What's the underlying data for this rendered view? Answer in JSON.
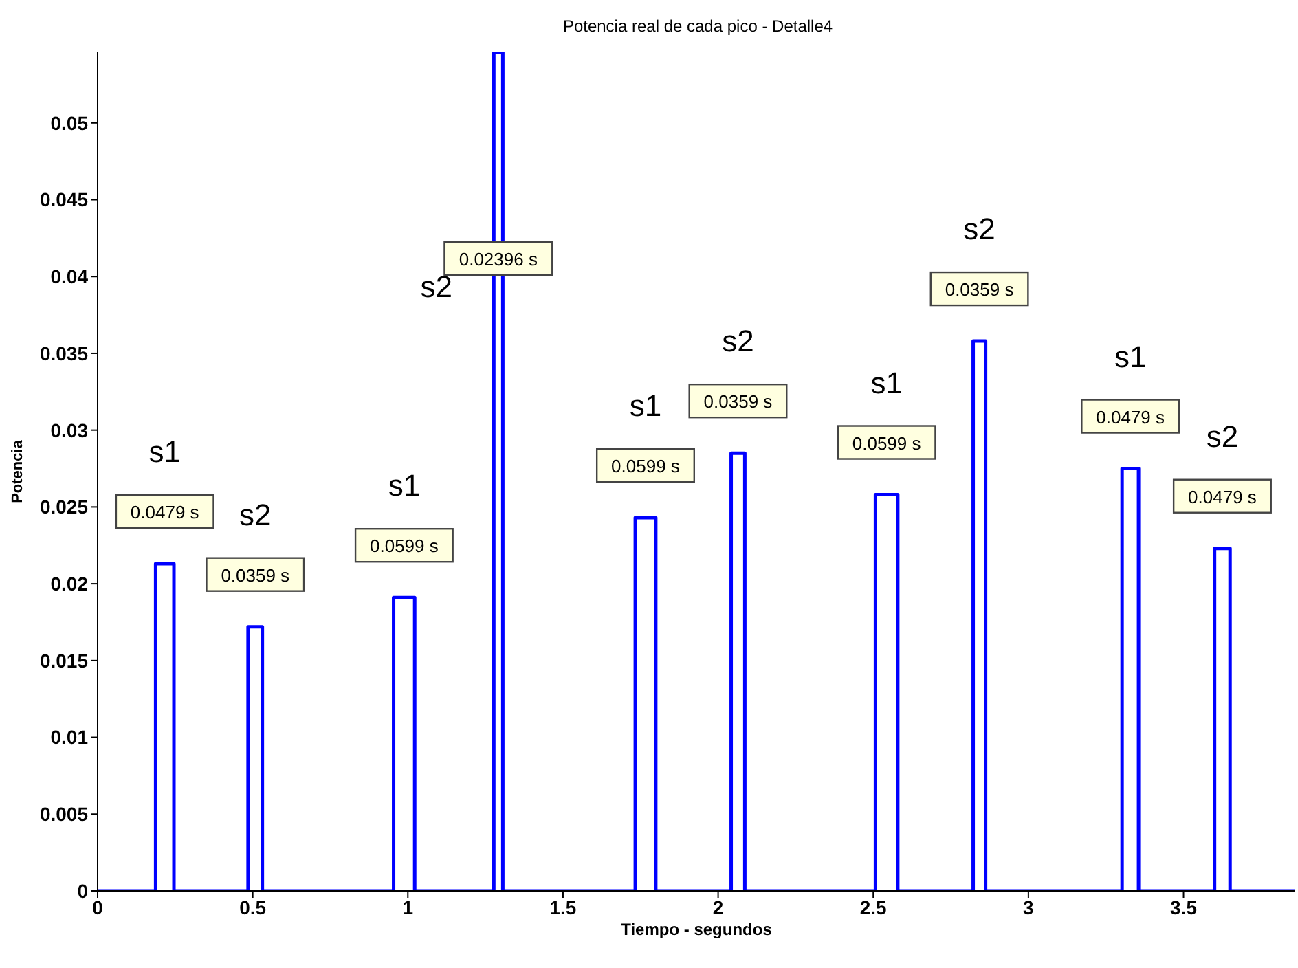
{
  "chart_data": {
    "type": "step",
    "title": "Potencia real de cada pico - Detalle4",
    "xlabel": "Tiempo - segundos",
    "ylabel": "Potencia",
    "x": [
      0,
      0.187,
      0.246,
      0.485,
      0.531,
      0.954,
      1.022,
      1.277,
      1.306,
      1.733,
      1.799,
      2.042,
      2.086,
      2.507,
      2.579,
      2.822,
      2.862,
      3.302,
      3.355,
      3.6,
      3.65,
      3.86
    ],
    "series": [
      {
        "color": "#0000ff",
        "values": [
          0,
          0.0213,
          0,
          0.0172,
          0,
          0.0191,
          0,
          0.0546,
          0,
          0.0243,
          0,
          0.0285,
          0,
          0.0258,
          0,
          0.0358,
          0,
          0.0275,
          0,
          0.0223,
          0,
          0
        ]
      }
    ],
    "xlim": [
      0,
      3.86
    ],
    "xticks": [
      0,
      0.5,
      1,
      1.5,
      2,
      2.5,
      3,
      3.5
    ],
    "ylim": [
      0,
      0.0546
    ],
    "yticks": [
      0,
      0.005,
      0.01,
      0.015,
      0.02,
      0.025,
      0.03,
      0.035,
      0.04,
      0.045,
      0.05
    ],
    "grid": false,
    "legend": false,
    "marker": "none",
    "line_style": "solid",
    "annotations": [
      "s1",
      "0.0479 s",
      "s2",
      "0.0359 s",
      "s1",
      "0.0599 s",
      "s2",
      "0.02396 s",
      "s1",
      "0.0599 s",
      "s2",
      "0.0359 s",
      "s1",
      "0.0599 s",
      "s2",
      "0.0359 s",
      "s1",
      "0.0479 s",
      "s2",
      "0.0479 s"
    ]
  }
}
